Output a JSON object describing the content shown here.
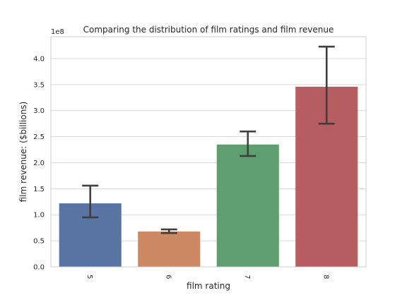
{
  "chart_data": {
    "type": "bar",
    "title": "Comparing the distribution of film ratings and film revenue",
    "xlabel": "film rating",
    "ylabel": "film revenue: ($billions)",
    "y_offset_label": "1e8",
    "categories": [
      "5",
      "6",
      "7",
      "8"
    ],
    "values": [
      122000000,
      68000000,
      235000000,
      346000000
    ],
    "error_low": [
      95000000,
      65000000,
      213000000,
      275000000
    ],
    "error_high": [
      156000000,
      72000000,
      260000000,
      423000000
    ],
    "colors": [
      "#5975a4",
      "#cc8963",
      "#5f9e6e",
      "#b55d60"
    ],
    "ylim": [
      0,
      442000000
    ],
    "yticks": [
      0,
      50000000,
      100000000,
      150000000,
      200000000,
      250000000,
      300000000,
      350000000,
      400000000
    ],
    "ytick_labels": [
      "0.0",
      "0.5",
      "1.0",
      "1.5",
      "2.0",
      "2.5",
      "3.0",
      "3.5",
      "4.0"
    ],
    "grid": true,
    "legend": "none"
  }
}
